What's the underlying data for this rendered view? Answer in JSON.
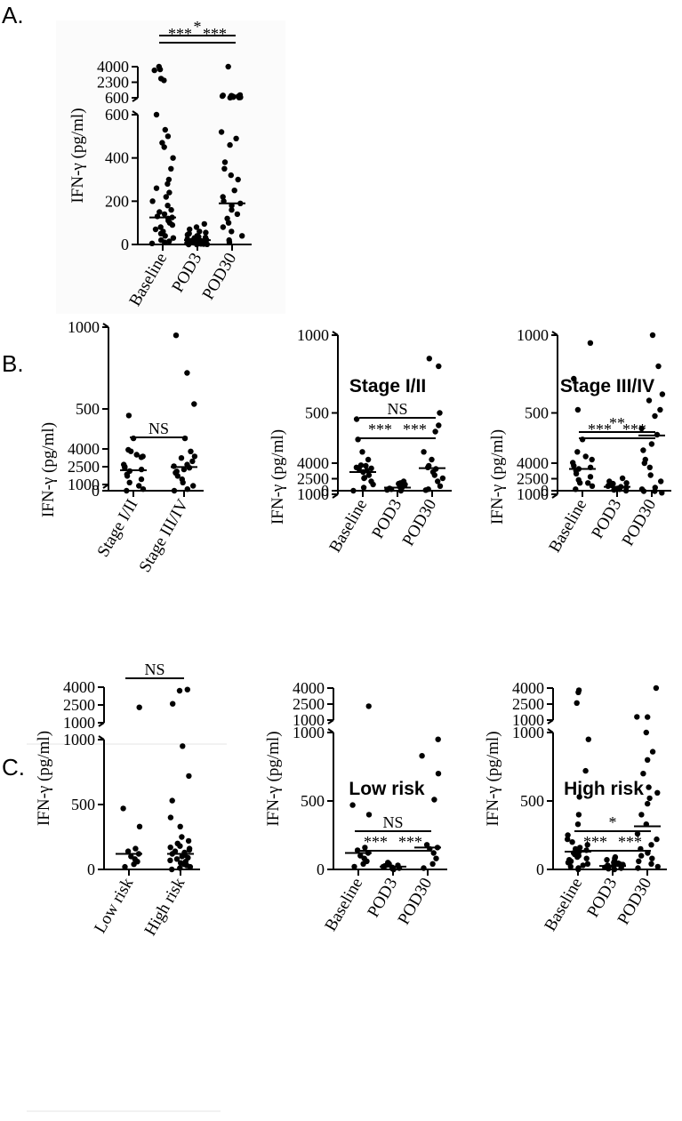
{
  "panels": [
    {
      "letter": "A."
    },
    {
      "letter": "B."
    },
    {
      "letter": "C."
    }
  ],
  "chart_data": [
    {
      "id": "A",
      "type": "scatter",
      "title": "",
      "ylabel": "IFN-γ (pg/ml)",
      "categories": [
        "Baseline",
        "POD3",
        "POD30"
      ],
      "y_scale": "broken",
      "ylim_lower": [
        0,
        600
      ],
      "lower_ticks": [
        "0",
        "200",
        "400",
        "600"
      ],
      "upper_ticks": [
        "600",
        "2300",
        "4000"
      ],
      "medians": [
        125,
        20,
        190
      ],
      "series": [
        {
          "name": "",
          "values": [
            4000,
            3700,
            3600,
            2700,
            2500,
            600,
            530,
            500,
            470,
            450,
            400,
            350,
            300,
            280,
            260,
            240,
            220,
            200,
            180,
            160,
            150,
            140,
            130,
            125,
            120,
            110,
            100,
            90,
            80,
            70,
            60,
            50,
            40,
            30,
            20,
            15,
            10,
            5
          ]
        },
        {
          "name": "",
          "values": [
            95,
            80,
            70,
            60,
            55,
            50,
            45,
            40,
            35,
            32,
            30,
            28,
            25,
            22,
            20,
            18,
            16,
            15,
            12,
            10,
            9,
            8,
            6,
            5,
            4,
            3,
            2,
            1,
            0,
            0
          ]
        },
        {
          "name": "",
          "values": [
            4000,
            900,
            860,
            820,
            800,
            780,
            760,
            740,
            720,
            700,
            680,
            650,
            630,
            610,
            520,
            490,
            460,
            380,
            350,
            320,
            300,
            250,
            220,
            200,
            190,
            180,
            160,
            140,
            120,
            100,
            80,
            60,
            40,
            20,
            10
          ]
        }
      ],
      "comparisons": [
        {
          "label": "*",
          "from": 0,
          "to": 2
        },
        {
          "label": "***",
          "from": 0,
          "to": 1
        },
        {
          "label": "***",
          "from": 1,
          "to": 2
        }
      ]
    },
    {
      "id": "B1",
      "type": "scatter",
      "title": "",
      "ylabel": "IFN-γ (pg/ml)",
      "categories": [
        "Stage I/II",
        "Stage III/IV"
      ],
      "y_scale": "broken",
      "ylim_lower": [
        0,
        1000
      ],
      "lower_ticks": [
        "0",
        "500",
        "1000"
      ],
      "upper_ticks": [
        "1000",
        "2500",
        "4000"
      ],
      "medians": [
        125,
        145
      ],
      "series": [
        {
          "name": "",
          "values": [
            3800,
            3300,
            2500,
            460,
            320,
            250,
            220,
            210,
            160,
            140,
            130,
            120,
            100,
            90,
            70,
            50,
            30,
            10,
            0
          ]
        },
        {
          "name": "",
          "values": [
            2100,
            950,
            720,
            530,
            320,
            240,
            210,
            200,
            180,
            160,
            150,
            140,
            130,
            110,
            90,
            70,
            50,
            30,
            10,
            0
          ]
        }
      ],
      "comparisons": [
        {
          "label": "NS",
          "from": 0,
          "to": 1
        }
      ]
    },
    {
      "id": "B2",
      "type": "scatter",
      "title": "Stage I/II",
      "ylabel": "IFN-γ (pg/ml)",
      "categories": [
        "Baseline",
        "POD3",
        "POD30"
      ],
      "y_scale": "broken",
      "ylim_lower": [
        0,
        1000
      ],
      "lower_ticks": [
        "0",
        "500",
        "1000"
      ],
      "upper_ticks": [
        "1000",
        "2500",
        "4000"
      ],
      "medians": [
        120,
        20,
        145
      ],
      "series": [
        {
          "name": "",
          "values": [
            3800,
            3500,
            2600,
            460,
            330,
            250,
            200,
            160,
            150,
            140,
            130,
            120,
            100,
            80,
            60,
            40,
            20,
            0
          ]
        },
        {
          "name": "",
          "values": [
            60,
            50,
            45,
            40,
            35,
            30,
            25,
            20,
            15,
            10,
            5,
            0
          ]
        },
        {
          "name": "",
          "values": [
            1400,
            850,
            800,
            500,
            420,
            380,
            250,
            200,
            160,
            150,
            140,
            120,
            100,
            80,
            60,
            30,
            10
          ]
        }
      ],
      "comparisons": [
        {
          "label": "NS",
          "from": 0,
          "to": 2
        },
        {
          "label": "***",
          "from": 0,
          "to": 1
        },
        {
          "label": "***",
          "from": 1,
          "to": 2
        }
      ]
    },
    {
      "id": "B3",
      "type": "scatter",
      "title": "Stage III/IV",
      "ylabel": "IFN-γ (pg/ml)",
      "categories": [
        "Baseline",
        "POD3",
        "POD30"
      ],
      "y_scale": "broken",
      "ylim_lower": [
        0,
        1000
      ],
      "lower_ticks": [
        "0",
        "500",
        "1000"
      ],
      "upper_ticks": [
        "1000",
        "2500",
        "4000"
      ],
      "medians": [
        140,
        25,
        355
      ],
      "series": [
        {
          "name": "",
          "values": [
            2100,
            950,
            720,
            520,
            330,
            250,
            220,
            200,
            180,
            160,
            150,
            140,
            130,
            110,
            90,
            70,
            50,
            30,
            10
          ]
        },
        {
          "name": "",
          "values": [
            80,
            60,
            50,
            45,
            40,
            35,
            30,
            25,
            20,
            15,
            10,
            5,
            0
          ]
        },
        {
          "name": "",
          "values": [
            4000,
            1300,
            1300,
            1150,
            1000,
            800,
            620,
            580,
            520,
            480,
            400,
            360,
            300,
            260,
            200,
            150,
            100,
            60,
            20,
            10
          ]
        }
      ],
      "comparisons": [
        {
          "label": "**",
          "from": 0,
          "to": 2
        },
        {
          "label": "***",
          "from": 0,
          "to": 1
        },
        {
          "label": "***",
          "from": 1,
          "to": 2
        }
      ]
    },
    {
      "id": "C1",
      "type": "scatter",
      "title": "",
      "ylabel": "IFN-γ (pg/ml)",
      "categories": [
        "Low risk",
        "High risk"
      ],
      "y_scale": "broken",
      "ylim_lower": [
        0,
        1000
      ],
      "lower_ticks": [
        "0",
        "500",
        "1000"
      ],
      "upper_ticks": [
        "1000",
        "2500",
        "4000"
      ],
      "medians": [
        120,
        120
      ],
      "series": [
        {
          "name": "",
          "values": [
            2300,
            470,
            330,
            160,
            140,
            120,
            100,
            80,
            60,
            40,
            20
          ]
        },
        {
          "name": "",
          "values": [
            3800,
            3700,
            2600,
            950,
            720,
            530,
            400,
            330,
            250,
            220,
            200,
            180,
            170,
            160,
            150,
            140,
            130,
            120,
            110,
            100,
            90,
            80,
            70,
            60,
            50,
            40,
            30,
            20,
            10,
            0
          ]
        }
      ],
      "comparisons": [
        {
          "label": "NS",
          "from": 0,
          "to": 1
        }
      ]
    },
    {
      "id": "C2",
      "type": "scatter",
      "title": "Low risk",
      "ylabel": "IFN-γ (pg/ml)",
      "categories": [
        "Baseline",
        "POD3",
        "POD30"
      ],
      "y_scale": "broken",
      "ylim_lower": [
        0,
        1000
      ],
      "lower_ticks": [
        "0",
        "500",
        "1000"
      ],
      "upper_ticks": [
        "1000",
        "2500",
        "4000"
      ],
      "medians": [
        120,
        20,
        160
      ],
      "series": [
        {
          "name": "",
          "values": [
            2300,
            470,
            400,
            160,
            140,
            120,
            100,
            80,
            60,
            40,
            20
          ]
        },
        {
          "name": "",
          "values": [
            50,
            40,
            30,
            25,
            20,
            15,
            10,
            5,
            0
          ]
        },
        {
          "name": "",
          "values": [
            950,
            830,
            700,
            510,
            180,
            160,
            150,
            120,
            80,
            40,
            10
          ]
        }
      ],
      "comparisons": [
        {
          "label": "NS",
          "from": 0,
          "to": 2
        },
        {
          "label": "***",
          "from": 0,
          "to": 1
        },
        {
          "label": "***",
          "from": 1,
          "to": 2
        }
      ]
    },
    {
      "id": "C3",
      "type": "scatter",
      "title": "High risk",
      "ylabel": "IFN-γ (pg/ml)",
      "categories": [
        "Baseline",
        "POD3",
        "POD30"
      ],
      "y_scale": "broken",
      "ylim_lower": [
        0,
        1000
      ],
      "lower_ticks": [
        "0",
        "500",
        "1000"
      ],
      "upper_ticks": [
        "1000",
        "2500",
        "4000"
      ],
      "medians": [
        130,
        25,
        315
      ],
      "series": [
        {
          "name": "",
          "values": [
            3800,
            3600,
            2600,
            950,
            720,
            530,
            400,
            330,
            250,
            220,
            200,
            180,
            160,
            150,
            140,
            130,
            120,
            110,
            100,
            90,
            80,
            70,
            60,
            50,
            40,
            30,
            20,
            10,
            0
          ]
        },
        {
          "name": "",
          "values": [
            90,
            80,
            70,
            60,
            55,
            50,
            45,
            40,
            35,
            30,
            25,
            20,
            15,
            10,
            5,
            0
          ]
        },
        {
          "name": "",
          "values": [
            4000,
            1300,
            1280,
            1000,
            860,
            800,
            700,
            600,
            560,
            520,
            480,
            400,
            330,
            260,
            220,
            180,
            150,
            120,
            100,
            80,
            60,
            40,
            20,
            10
          ]
        }
      ],
      "comparisons": [
        {
          "label": "*",
          "from": 0,
          "to": 2
        },
        {
          "label": "***",
          "from": 0,
          "to": 1
        },
        {
          "label": "***",
          "from": 1,
          "to": 2
        }
      ]
    }
  ]
}
